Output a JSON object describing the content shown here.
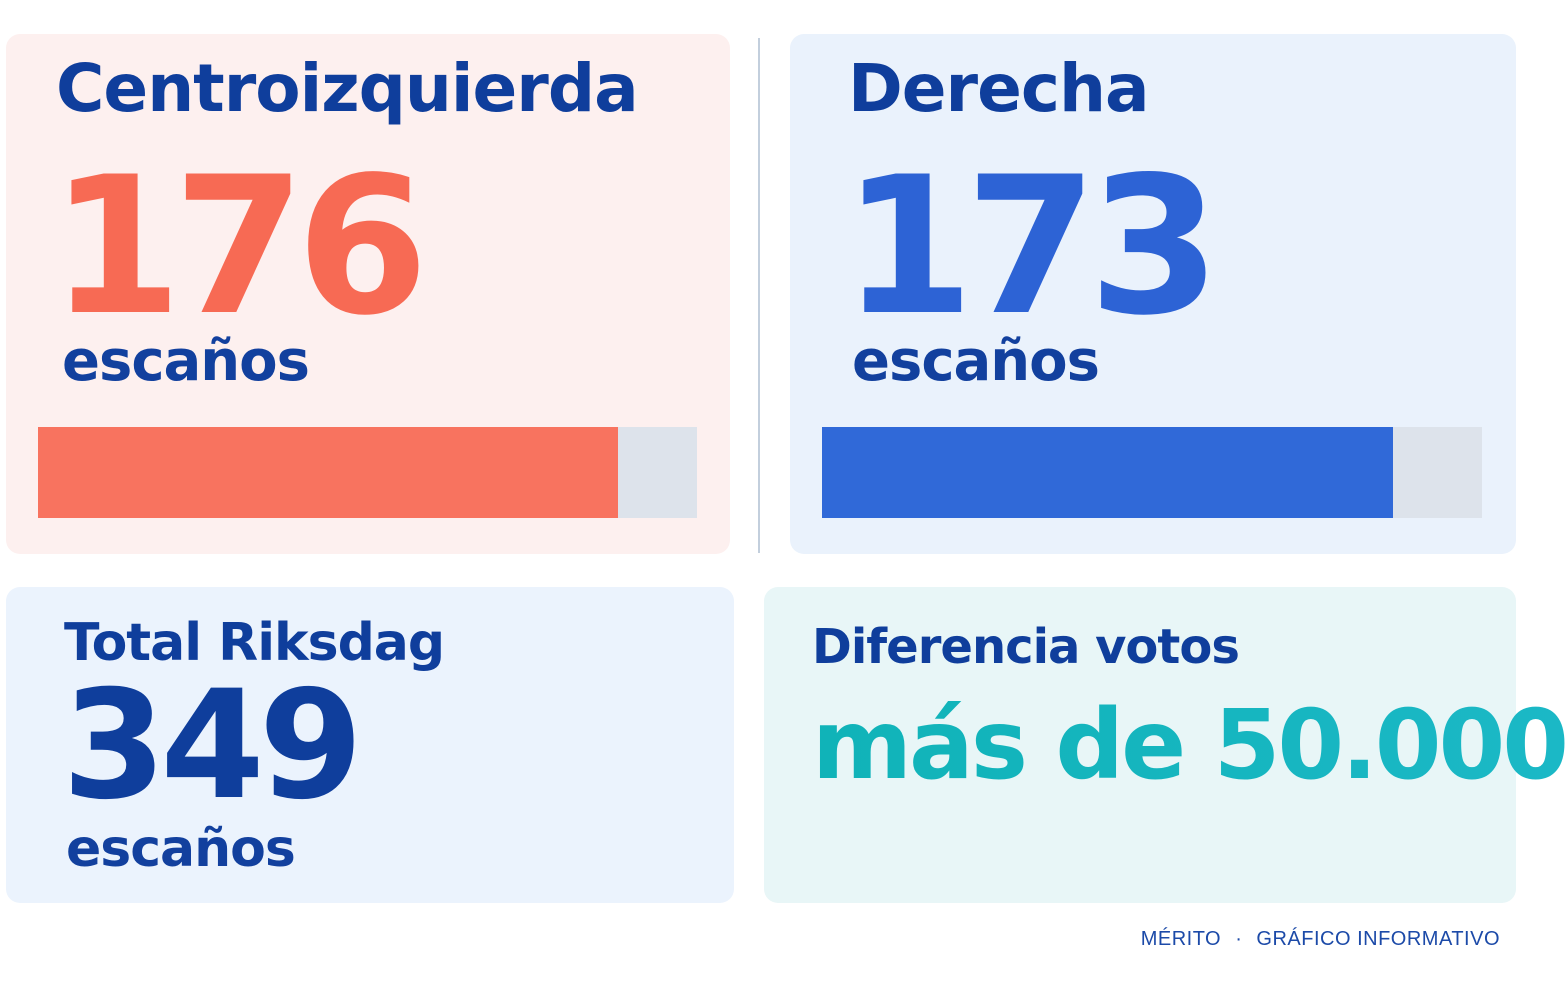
{
  "chart_data": {
    "type": "bar",
    "categories": [
      "Centroizquierda",
      "Derecha"
    ],
    "values": [
      176,
      173
    ],
    "unit_label": "escaños",
    "bar_scale_max": 200,
    "colors": {
      "centroizquierda": "#f8735f",
      "derecha": "#3069d8",
      "track": "#dde3eb"
    },
    "cards": {
      "left": {
        "title": "Centroizquierda",
        "value": "176",
        "unit": "escaños"
      },
      "right": {
        "title": "Derecha",
        "value": "173",
        "unit": "escaños"
      },
      "total": {
        "title": "Total Riksdag",
        "value": "349",
        "unit": "escaños"
      },
      "diff": {
        "title": "Diferencia votos",
        "value": "más de 50.000"
      }
    }
  },
  "footer": {
    "left": "MÉRITO",
    "separator": "·",
    "right": "GRÁFICO INFORMATIVO"
  }
}
